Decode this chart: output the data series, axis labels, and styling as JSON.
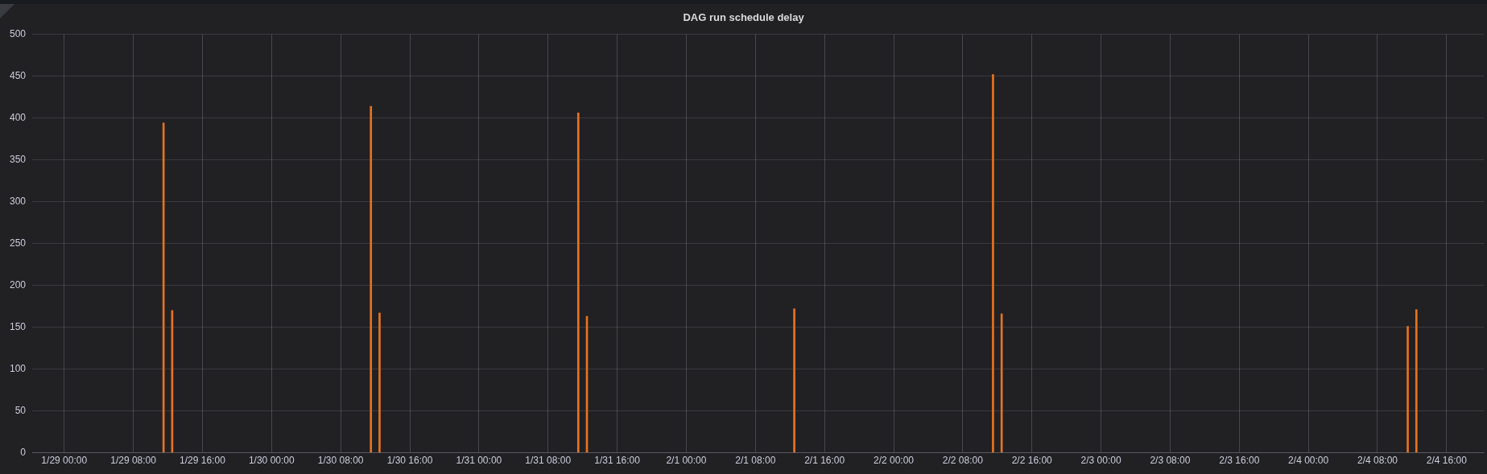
{
  "chart_data": {
    "type": "bar",
    "title": "DAG run schedule delay",
    "x": [
      "--01-29T11:30",
      "--01-29T12:30",
      "--01-30T11:30",
      "--01-30T12:30",
      "--01-31T11:30",
      "--01-31T12:30",
      "--02-01T12:30",
      "--02-02T11:30",
      "--02-02T12:30",
      "--02-04T11:30",
      "--02-04T12:30"
    ],
    "values": [
      394,
      170,
      414,
      167,
      406,
      163,
      172,
      452,
      166,
      151,
      171
    ],
    "color": "#e8731f",
    "xlim": [
      "--01-28T20:18",
      "--02-04T20:18"
    ],
    "xticks": [
      {
        "value": "--01-29T00:00",
        "label": "1/29 00:00"
      },
      {
        "value": "--01-29T08:00",
        "label": "1/29 08:00"
      },
      {
        "value": "--01-29T16:00",
        "label": "1/29 16:00"
      },
      {
        "value": "--01-30T00:00",
        "label": "1/30 00:00"
      },
      {
        "value": "--01-30T08:00",
        "label": "1/30 08:00"
      },
      {
        "value": "--01-30T16:00",
        "label": "1/30 16:00"
      },
      {
        "value": "--01-31T00:00",
        "label": "1/31 00:00"
      },
      {
        "value": "--01-31T08:00",
        "label": "1/31 08:00"
      },
      {
        "value": "--01-31T16:00",
        "label": "1/31 16:00"
      },
      {
        "value": "--02-01T00:00",
        "label": "2/1 00:00"
      },
      {
        "value": "--02-01T08:00",
        "label": "2/1 08:00"
      },
      {
        "value": "--02-01T16:00",
        "label": "2/1 16:00"
      },
      {
        "value": "--02-02T00:00",
        "label": "2/2 00:00"
      },
      {
        "value": "--02-02T08:00",
        "label": "2/2 08:00"
      },
      {
        "value": "--02-02T16:00",
        "label": "2/2 16:00"
      },
      {
        "value": "--02-03T00:00",
        "label": "2/3 00:00"
      },
      {
        "value": "--02-03T08:00",
        "label": "2/3 08:00"
      },
      {
        "value": "--02-03T16:00",
        "label": "2/3 16:00"
      },
      {
        "value": "--02-04T00:00",
        "label": "2/4 00:00"
      },
      {
        "value": "--02-04T08:00",
        "label": "2/4 08:00"
      },
      {
        "value": "--02-04T16:00",
        "label": "2/4 16:00"
      }
    ],
    "ylim": [
      0,
      500
    ],
    "yticks": [
      0,
      50,
      100,
      150,
      200,
      250,
      300,
      350,
      400,
      450,
      500
    ],
    "grid": true
  }
}
